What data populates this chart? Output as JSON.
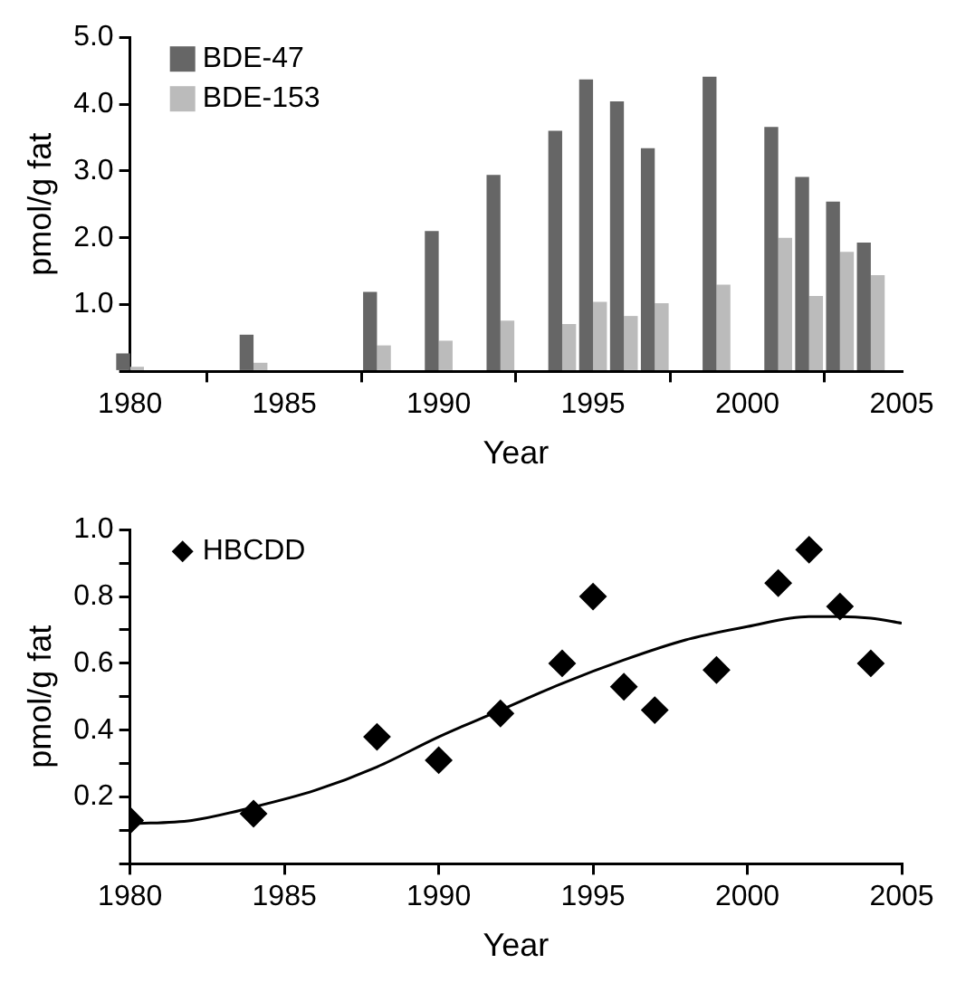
{
  "chart_data": [
    {
      "type": "bar",
      "xlabel": "Year",
      "ylabel": "pmol/g fat",
      "x": [
        1980,
        1984,
        1988,
        1990,
        1992,
        1994,
        1995,
        1996,
        1997,
        1999,
        2001,
        2002,
        2003,
        2004
      ],
      "series": [
        {
          "name": "BDE-47",
          "color": "#666666",
          "values": [
            0.27,
            0.55,
            1.19,
            2.1,
            2.94,
            3.6,
            4.37,
            4.04,
            3.34,
            4.41,
            3.66,
            2.91,
            2.54,
            1.93
          ]
        },
        {
          "name": "BDE-153",
          "color": "#bbbbbb",
          "values": [
            0.07,
            0.13,
            0.39,
            0.46,
            0.76,
            0.71,
            1.04,
            0.83,
            1.02,
            1.3,
            2.0,
            1.13,
            1.79,
            1.44
          ]
        }
      ],
      "xlim": [
        1980,
        2005
      ],
      "xticks": [
        1980,
        1985,
        1990,
        1995,
        2000,
        2005
      ],
      "ylim": [
        0,
        5
      ],
      "yticks": [
        {
          "value": 0,
          "label": null
        },
        {
          "value": 1,
          "label": "1.0"
        },
        {
          "value": 2,
          "label": "2.0"
        },
        {
          "value": 3,
          "label": "3.0"
        },
        {
          "value": 4,
          "label": "4.0"
        },
        {
          "value": 5,
          "label": "5.0"
        }
      ],
      "grid": false,
      "legend": "top left"
    },
    {
      "type": "scatter",
      "xlabel": "Year",
      "ylabel": "pmol/g fat",
      "marker": "diamond",
      "series": [
        {
          "name": "HBCDD",
          "color": "#000000",
          "x": [
            1980,
            1984,
            1988,
            1990,
            1992,
            1994,
            1995,
            1996,
            1997,
            1999,
            2001,
            2002,
            2003,
            2004
          ],
          "values": [
            0.13,
            0.15,
            0.38,
            0.31,
            0.45,
            0.6,
            0.8,
            0.53,
            0.46,
            0.58,
            0.84,
            0.94,
            0.77,
            0.6
          ]
        },
        {
          "type": "line",
          "color": "#000000",
          "marker": "none",
          "x": [
            1980,
            1982,
            1984,
            1986,
            1988,
            1990,
            1992,
            1994,
            1996,
            1998,
            2000,
            2002,
            2003,
            2004,
            2005
          ],
          "values": [
            0.12,
            0.13,
            0.17,
            0.22,
            0.29,
            0.38,
            0.46,
            0.54,
            0.61,
            0.67,
            0.71,
            0.74,
            0.74,
            0.735,
            0.72
          ]
        }
      ],
      "xlim": [
        1980,
        2005
      ],
      "xticks": [
        1980,
        1985,
        1990,
        1995,
        2000,
        2005
      ],
      "ylim": [
        0,
        1
      ],
      "yticks": [
        {
          "value": 0,
          "label": null
        },
        {
          "value": 0.1,
          "label": null
        },
        {
          "value": 0.2,
          "label": "0.2"
        },
        {
          "value": 0.3,
          "label": null
        },
        {
          "value": 0.4,
          "label": "0.4"
        },
        {
          "value": 0.5,
          "label": null
        },
        {
          "value": 0.6,
          "label": "0.6"
        },
        {
          "value": 0.7,
          "label": null
        },
        {
          "value": 0.8,
          "label": "0.8"
        },
        {
          "value": 0.9,
          "label": null
        },
        {
          "value": 1,
          "label": "1.0"
        }
      ],
      "grid": false,
      "legend": "top left"
    }
  ]
}
